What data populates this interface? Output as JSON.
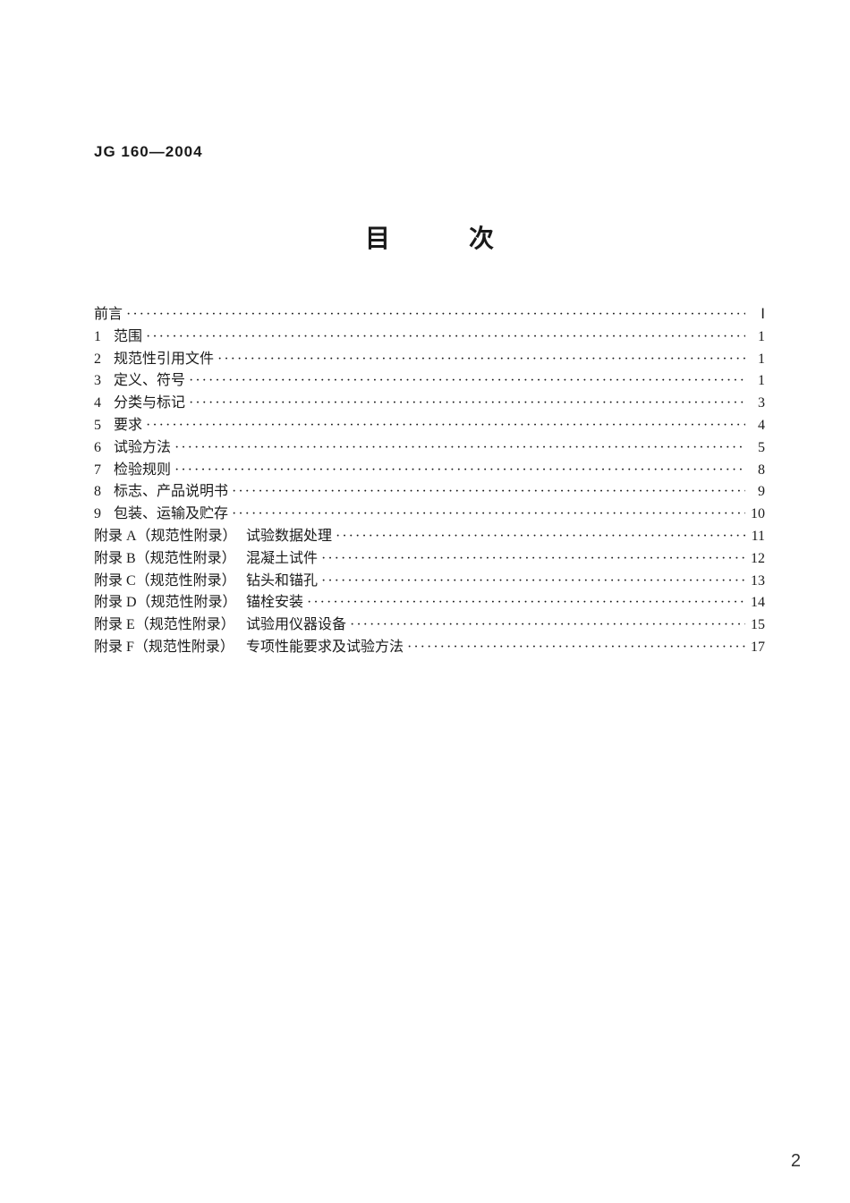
{
  "document": {
    "standard_number": "JG 160—2004",
    "title": "目　次",
    "background_color": "#ffffff",
    "text_color": "#1a1a1a",
    "title_fontsize": 28,
    "body_fontsize": 16,
    "doc_number_fontsize": 17
  },
  "toc": {
    "entries": [
      {
        "num": "",
        "label": "前言",
        "page": "Ⅰ"
      },
      {
        "num": "1",
        "label": "范围",
        "page": "1"
      },
      {
        "num": "2",
        "label": "规范性引用文件",
        "page": "1"
      },
      {
        "num": "3",
        "label": "定义、符号",
        "page": "1"
      },
      {
        "num": "4",
        "label": "分类与标记",
        "page": "3"
      },
      {
        "num": "5",
        "label": "要求",
        "page": "4"
      },
      {
        "num": "6",
        "label": "试验方法",
        "page": "5"
      },
      {
        "num": "7",
        "label": "检验规则",
        "page": "8"
      },
      {
        "num": "8",
        "label": "标志、产品说明书",
        "page": "9"
      },
      {
        "num": "9",
        "label": "包装、运输及贮存",
        "page": "10"
      }
    ],
    "appendices": [
      {
        "prefix": "附录 A（规范性附录）",
        "label": "试验数据处理",
        "page": "11"
      },
      {
        "prefix": "附录 B（规范性附录）",
        "label": "混凝土试件",
        "page": "12"
      },
      {
        "prefix": "附录 C（规范性附录）",
        "label": "钻头和锚孔",
        "page": "13"
      },
      {
        "prefix": "附录 D（规范性附录）",
        "label": "锚栓安装",
        "page": "14"
      },
      {
        "prefix": "附录 E（规范性附录）",
        "label": "试验用仪器设备",
        "page": "15"
      },
      {
        "prefix": "附录 F（规范性附录）",
        "label": "专项性能要求及试验方法",
        "page": "17"
      }
    ]
  },
  "page_number": "2",
  "dots": "·······································································································································································"
}
